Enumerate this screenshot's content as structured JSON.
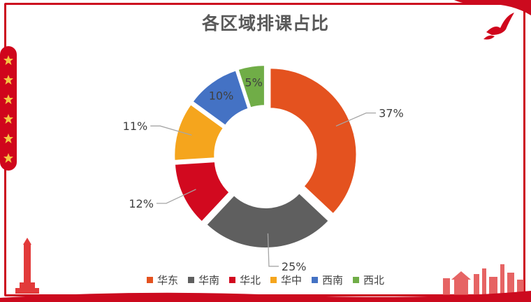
{
  "title": "各区域排课占比",
  "chart_data": {
    "type": "pie",
    "variant": "doughnut",
    "categories": [
      "华东",
      "华南",
      "华北",
      "华中",
      "西南",
      "西北"
    ],
    "values": [
      37,
      25,
      12,
      11,
      10,
      5
    ],
    "labels": [
      "37%",
      "25%",
      "12%",
      "11%",
      "10%",
      "5%"
    ],
    "colors": [
      "#e4521f",
      "#5f5f5f",
      "#d2091f",
      "#f5a51d",
      "#4472c4",
      "#70ad47"
    ],
    "legend_position": "bottom"
  },
  "theme": {
    "frame_color": "#cc0a1e",
    "star_color": "#f6c343"
  }
}
